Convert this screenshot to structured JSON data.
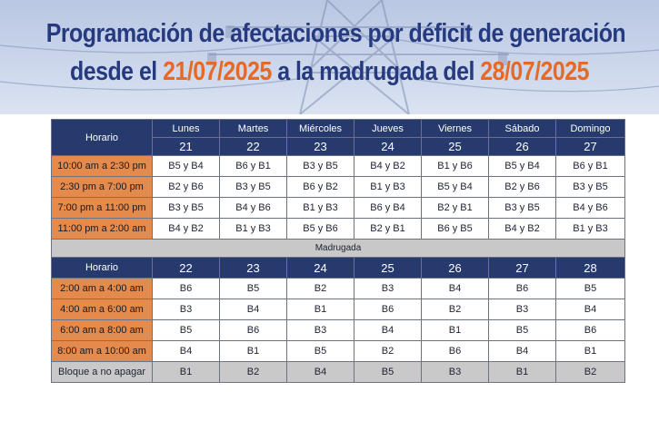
{
  "title": {
    "line1": "Programación de afectaciones por déficit de generación",
    "line2_prefix": "desde el ",
    "date_from": "21/07/2025",
    "line2_mid": " a la madrugada del ",
    "date_to": "28/07/2025"
  },
  "colors": {
    "title": "#263a80",
    "date_accent": "#e56a27",
    "header_bg": "#263a6e",
    "slot_bg": "#e58a4d",
    "section_bg": "#c8c8c8"
  },
  "table": {
    "horario_label": "Horario",
    "days": [
      "Lunes",
      "Martes",
      "Miércoles",
      "Jueves",
      "Viernes",
      "Sábado",
      "Domingo"
    ],
    "day_numbers": [
      "21",
      "22",
      "23",
      "24",
      "25",
      "26",
      "27"
    ],
    "day_rows": [
      {
        "slot": "10:00 am a 2:30 pm",
        "cells": [
          "B5 y B4",
          "B6 y B1",
          "B3 y B5",
          "B4 y B2",
          "B1 y B6",
          "B5 y B4",
          "B6 y B1"
        ]
      },
      {
        "slot": "2:30 pm a 7:00 pm",
        "cells": [
          "B2 y B6",
          "B3 y B5",
          "B6 y B2",
          "B1 y B3",
          "B5 y B4",
          "B2 y B6",
          "B3 y B5"
        ]
      },
      {
        "slot": "7:00 pm a 11:00 pm",
        "cells": [
          "B3 y B5",
          "B4 y B6",
          "B1 y B3",
          "B6 y B4",
          "B2 y B1",
          "B3 y B5",
          "B4 y B6"
        ]
      },
      {
        "slot": "11:00 pm a 2:00 am",
        "cells": [
          "B4 y B2",
          "B1 y B3",
          "B5 y B6",
          "B2 y B1",
          "B6 y B5",
          "B4 y B2",
          "B1 y B3"
        ]
      }
    ],
    "section_label": "Madrugada",
    "madrugada_numbers": [
      "22",
      "23",
      "24",
      "25",
      "26",
      "27",
      "28"
    ],
    "madrugada_rows": [
      {
        "slot": "2:00 am a 4:00 am",
        "cells": [
          "B6",
          "B5",
          "B2",
          "B3",
          "B4",
          "B6",
          "B5"
        ]
      },
      {
        "slot": "4:00 am a 6:00 am",
        "cells": [
          "B3",
          "B4",
          "B1",
          "B6",
          "B2",
          "B3",
          "B4"
        ]
      },
      {
        "slot": "6:00 am a 8:00 am",
        "cells": [
          "B5",
          "B6",
          "B3",
          "B4",
          "B1",
          "B5",
          "B6"
        ]
      },
      {
        "slot": "8:00 am a 10:00 am",
        "cells": [
          "B4",
          "B1",
          "B5",
          "B2",
          "B6",
          "B4",
          "B1"
        ]
      }
    ],
    "no_apagar": {
      "slot": "Bloque a no apagar",
      "cells": [
        "B1",
        "B2",
        "B4",
        "B5",
        "B3",
        "B1",
        "B2"
      ]
    }
  }
}
